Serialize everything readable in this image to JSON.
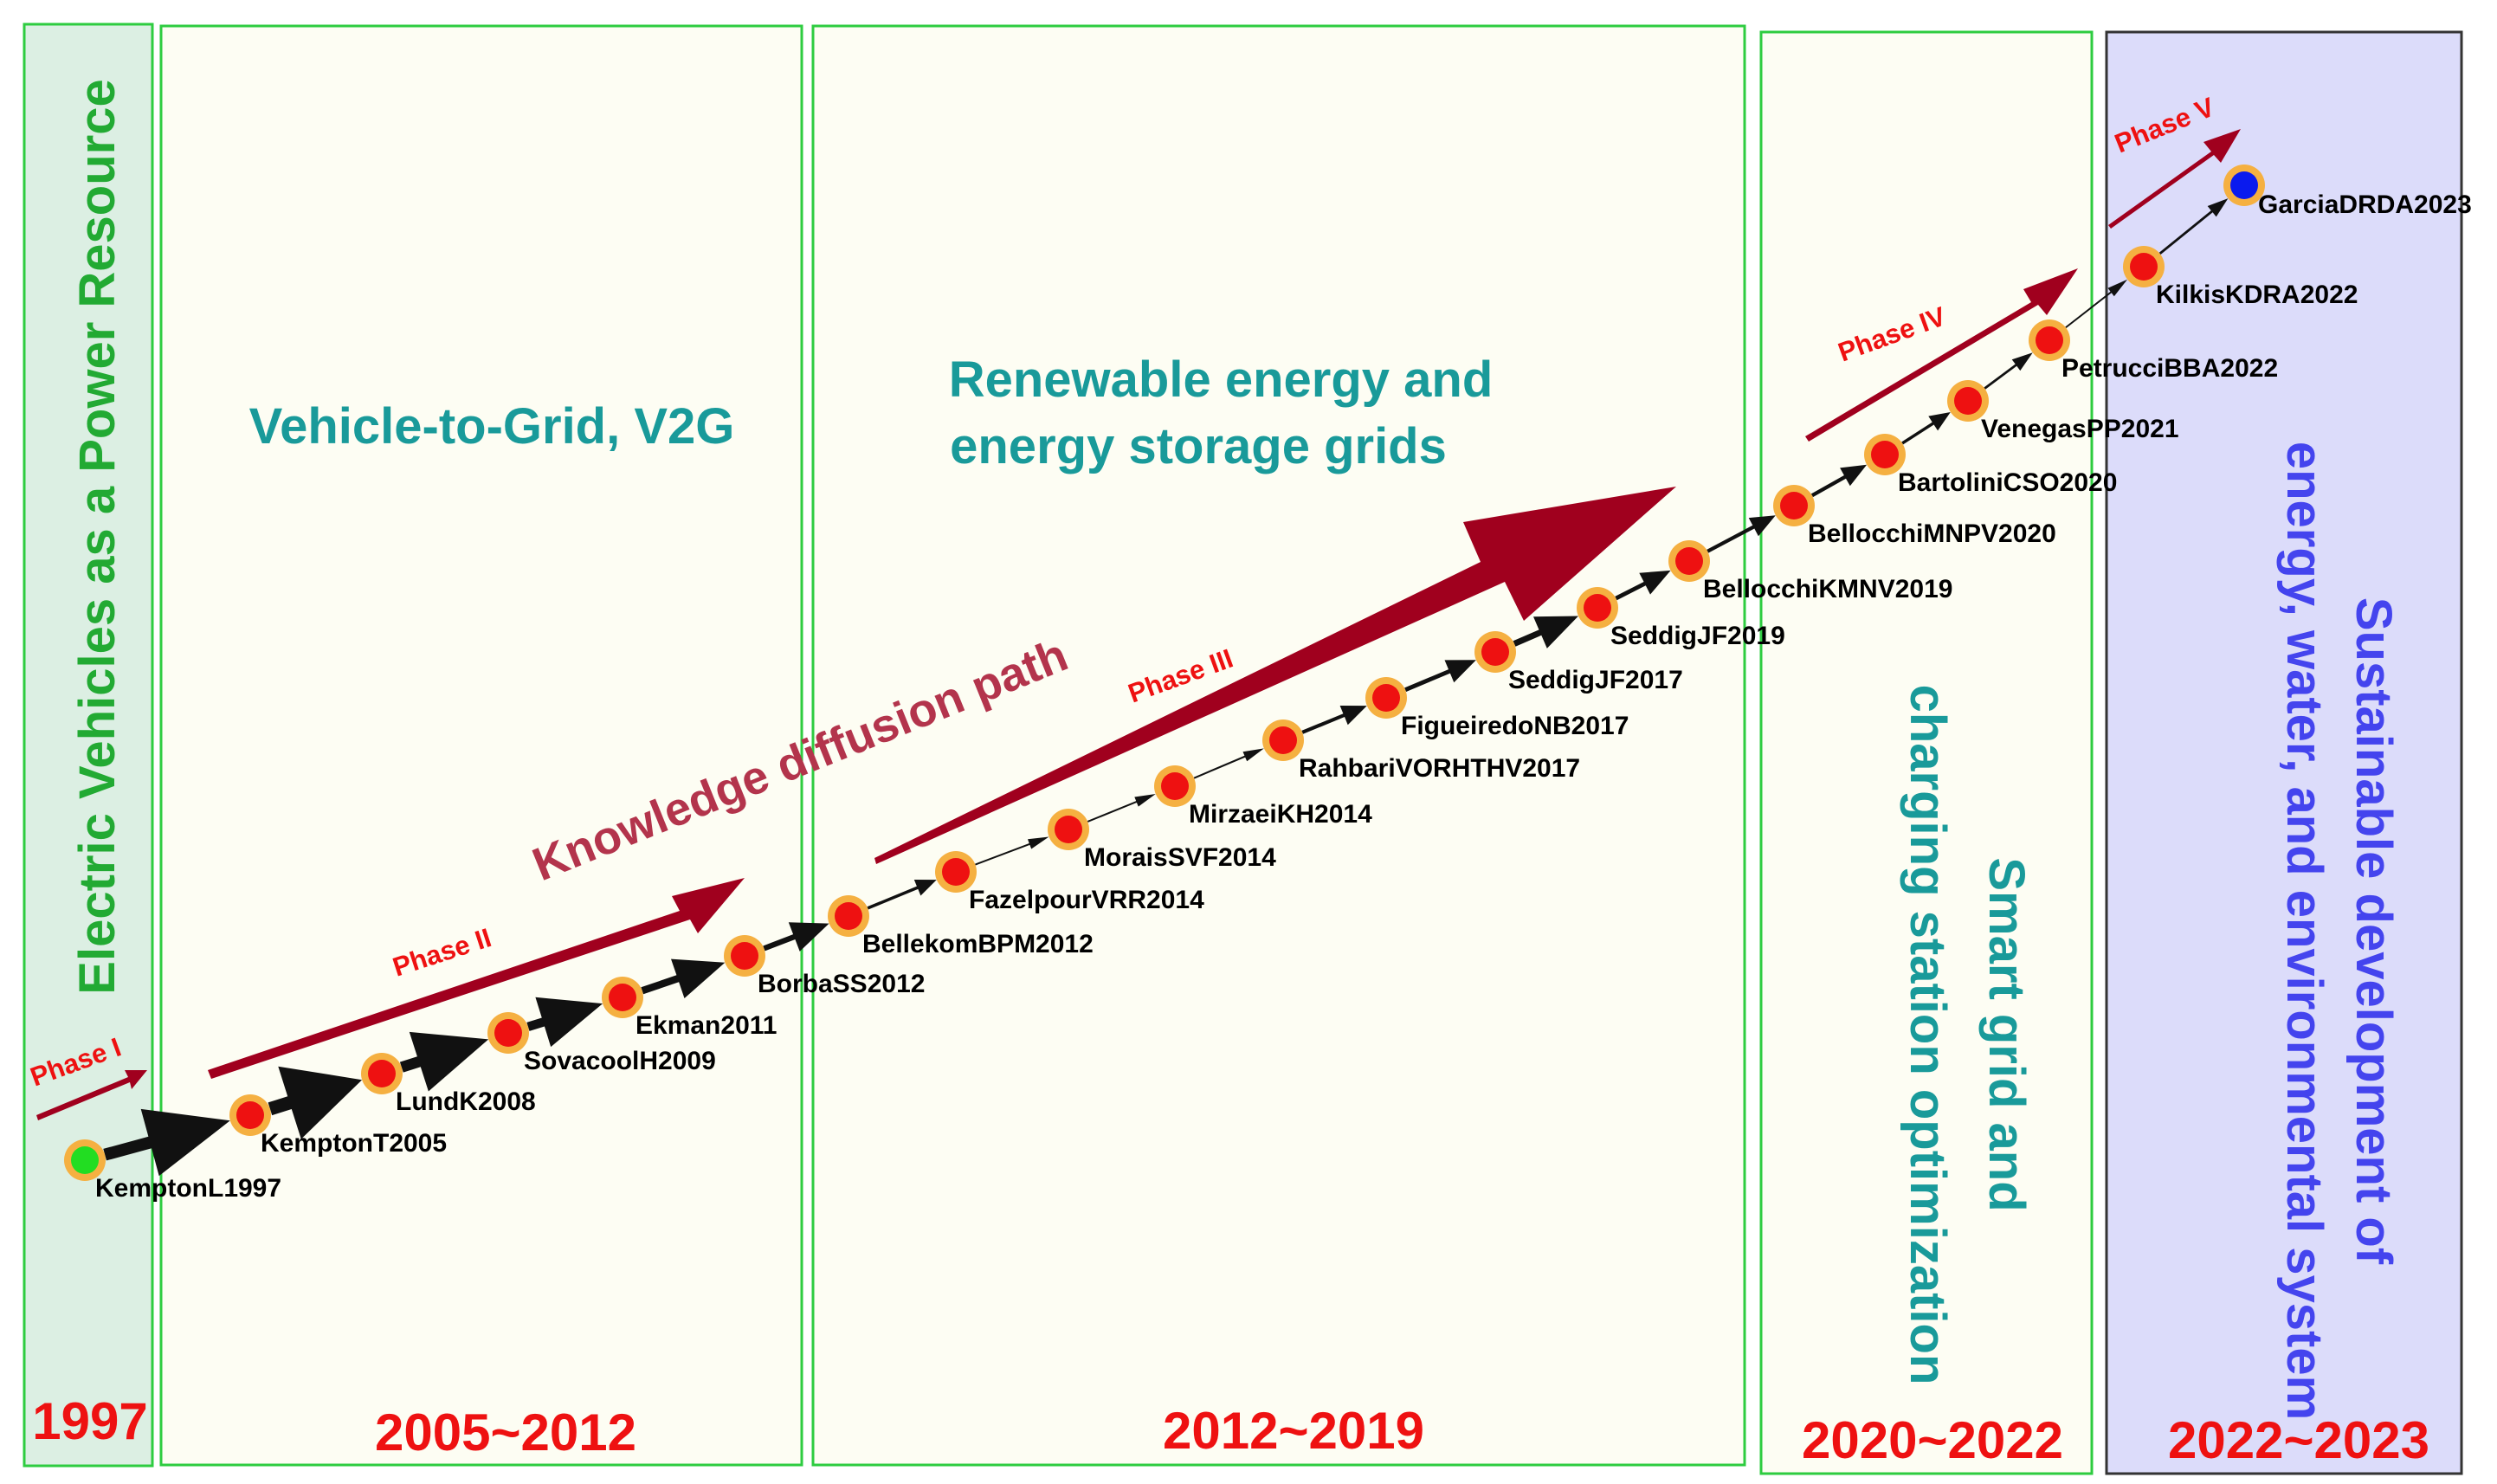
{
  "colors": {
    "panel_green_fill": "#dcefe3",
    "panel_cream_fill": "#fdfdf3",
    "panel_purple_fill": "#dcdcfa",
    "panel_border_green": "#2ecc40",
    "panel_border_dark": "#333333",
    "period_text": "#ee1111",
    "theme_green": "#22aa33",
    "theme_teal": "#199a9a",
    "theme_purple": "#4444ee",
    "phase_arrow": "#a0001e",
    "phase_text": "#ee1111",
    "node_outer": "#f5b041",
    "node_red": "#ee1111",
    "node_start": "#22dd22",
    "node_end": "#0a1aee",
    "path_arrow": "#111111",
    "knowledge_text": "#b3344c"
  },
  "periods": [
    {
      "id": "p1997",
      "label": "1997",
      "theme": "Electric Vehicles as a Power Resource"
    },
    {
      "id": "p2005",
      "label": "2005~2012",
      "theme": "Vehicle-to-Grid, V2G"
    },
    {
      "id": "p2012",
      "label": "2012~2019",
      "theme_line1": "Renewable energy and",
      "theme_line2": "energy storage grids"
    },
    {
      "id": "p2020",
      "label": "2020~2022",
      "theme_line1": "Smart grid and",
      "theme_line2": "charging station optimization"
    },
    {
      "id": "p2022",
      "label": "2022~2023",
      "theme_line1": "Sustainable development of",
      "theme_line2": "energy, water, and environmental system"
    }
  ],
  "knowledge_label": "Knowledge diffusion path",
  "phases": [
    "Phase  I",
    "Phase  II",
    "Phase  III",
    "Phase  IV",
    "Phase  V"
  ],
  "nodes": [
    {
      "label": "KemptonL1997",
      "kind": "start"
    },
    {
      "label": "KemptonT2005",
      "kind": "normal"
    },
    {
      "label": "LundK2008",
      "kind": "normal"
    },
    {
      "label": "SovacoolH2009",
      "kind": "normal"
    },
    {
      "label": "Ekman2011",
      "kind": "normal"
    },
    {
      "label": "BorbaSS2012",
      "kind": "normal"
    },
    {
      "label": "BellekomBPM2012",
      "kind": "normal"
    },
    {
      "label": "FazelpourVRR2014",
      "kind": "normal"
    },
    {
      "label": "MoraisSVF2014",
      "kind": "normal"
    },
    {
      "label": "MirzaeiKH2014",
      "kind": "normal"
    },
    {
      "label": "RahbariVORHTHV2017",
      "kind": "normal"
    },
    {
      "label": "FigueiredoNB2017",
      "kind": "normal"
    },
    {
      "label": "SeddigJF2017",
      "kind": "normal"
    },
    {
      "label": "SeddigJF2019",
      "kind": "normal"
    },
    {
      "label": "BellocchiKMNV2019",
      "kind": "normal"
    },
    {
      "label": "BellocchiMNPV2020",
      "kind": "normal"
    },
    {
      "label": "BartoliniCSO2020",
      "kind": "normal"
    },
    {
      "label": "VenegasPP2021",
      "kind": "normal"
    },
    {
      "label": "PetrucciBBA2022",
      "kind": "normal"
    },
    {
      "label": "KilkisKDRA2022",
      "kind": "normal"
    },
    {
      "label": "GarciaDRDA2023",
      "kind": "end"
    }
  ]
}
